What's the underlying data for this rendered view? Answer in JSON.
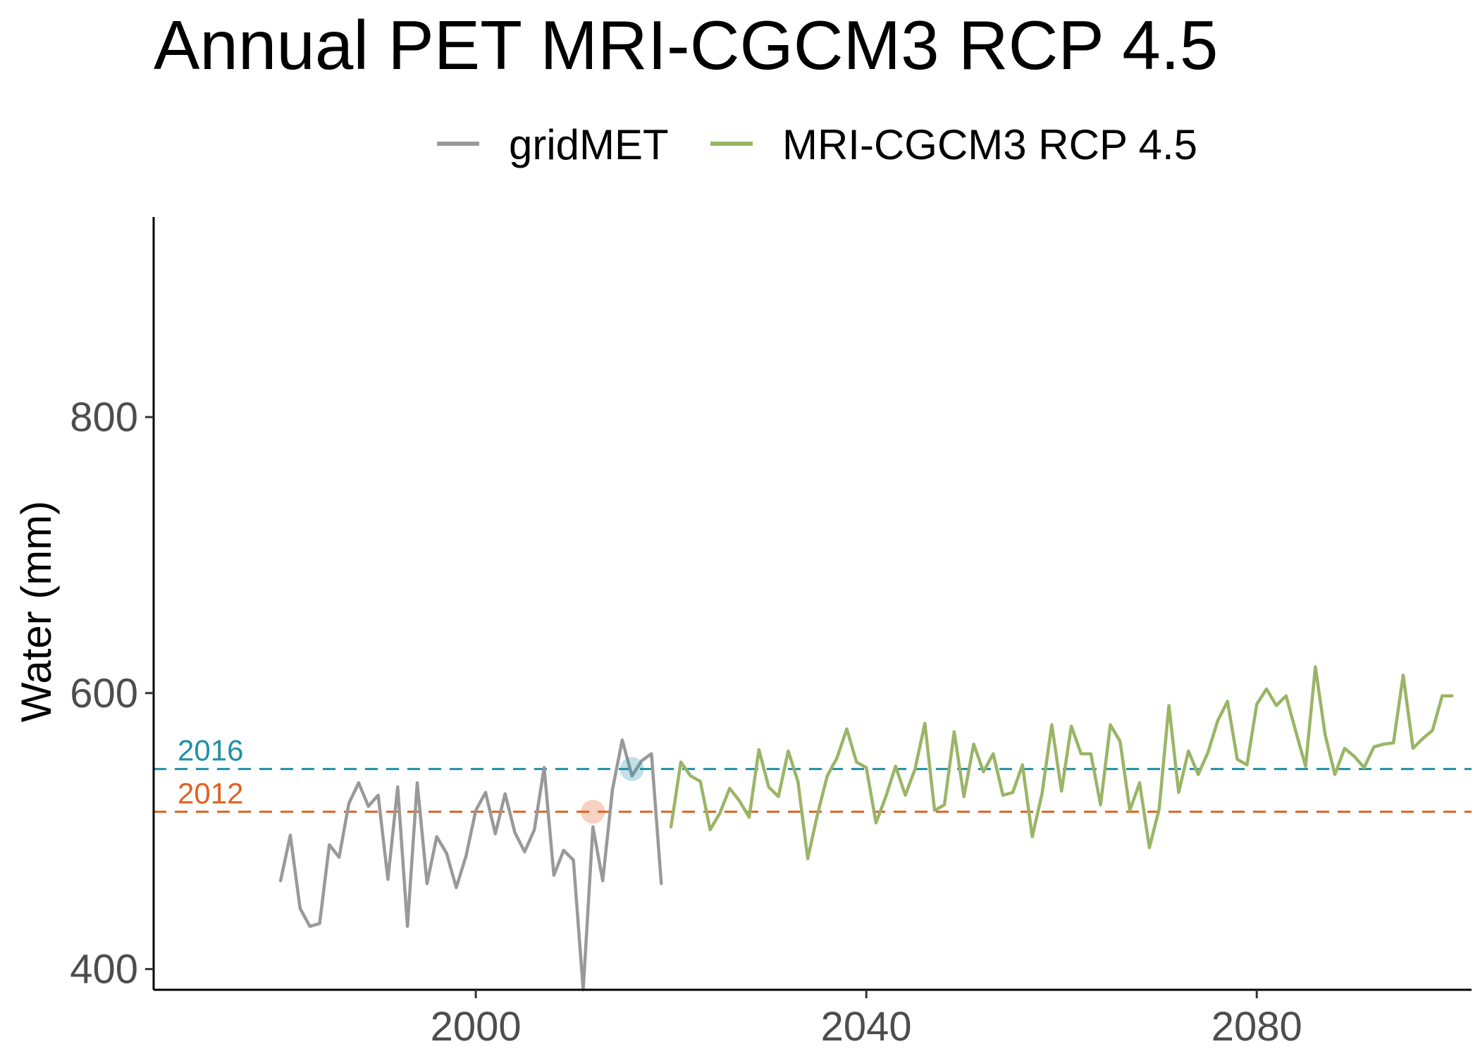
{
  "chart_data": {
    "type": "line",
    "title": "Annual PET MRI-CGCM3 RCP 4.5",
    "xlabel": "",
    "ylabel": "Water (mm)",
    "xlim": [
      1967,
      2102
    ],
    "ylim": [
      385,
      945
    ],
    "x_ticks": [
      2000,
      2040,
      2080
    ],
    "y_ticks": [
      400,
      600,
      800
    ],
    "grid": false,
    "legend": {
      "position": "top"
    },
    "series": [
      {
        "name": "gridMET",
        "color": "#999999",
        "x": [
          1980,
          1981,
          1982,
          1983,
          1984,
          1985,
          1986,
          1987,
          1988,
          1989,
          1990,
          1991,
          1992,
          1993,
          1994,
          1995,
          1996,
          1997,
          1998,
          1999,
          2000,
          2001,
          2002,
          2003,
          2004,
          2005,
          2006,
          2007,
          2008,
          2009,
          2010,
          2011,
          2012,
          2013,
          2014,
          2015,
          2016,
          2017,
          2018,
          2019
        ],
        "values": [
          464,
          497,
          444,
          431,
          433,
          490,
          481,
          520,
          535,
          518,
          526,
          465,
          532,
          431,
          535,
          462,
          496,
          484,
          459,
          482,
          515,
          528,
          498,
          527,
          499,
          485,
          501,
          546,
          468,
          486,
          479,
          385,
          503,
          464,
          530,
          566,
          540,
          551,
          556,
          462
        ]
      },
      {
        "name": "MRI-CGCM3 RCP 4.5",
        "color": "#9ab566",
        "x": [
          2020,
          2021,
          2022,
          2023,
          2024,
          2025,
          2026,
          2027,
          2028,
          2029,
          2030,
          2031,
          2032,
          2033,
          2034,
          2035,
          2036,
          2037,
          2038,
          2039,
          2040,
          2041,
          2042,
          2043,
          2044,
          2045,
          2046,
          2047,
          2048,
          2049,
          2050,
          2051,
          2052,
          2053,
          2054,
          2055,
          2056,
          2057,
          2058,
          2059,
          2060,
          2061,
          2062,
          2063,
          2064,
          2065,
          2066,
          2067,
          2068,
          2069,
          2070,
          2071,
          2072,
          2073,
          2074,
          2075,
          2076,
          2077,
          2078,
          2079,
          2080,
          2081,
          2082,
          2083,
          2084,
          2085,
          2086,
          2087,
          2088,
          2089,
          2090,
          2091,
          2092,
          2093,
          2094,
          2095,
          2096,
          2097,
          2098,
          2099,
          2100
        ],
        "values": [
          503,
          550,
          540,
          536,
          501,
          513,
          531,
          522,
          510,
          559,
          532,
          525,
          558,
          536,
          480,
          512,
          540,
          553,
          574,
          550,
          546,
          506,
          525,
          547,
          526,
          545,
          578,
          515,
          519,
          572,
          525,
          563,
          543,
          556,
          526,
          528,
          548,
          496,
          527,
          577,
          529,
          576,
          556,
          556,
          519,
          577,
          565,
          515,
          535,
          488,
          516,
          591,
          528,
          558,
          541,
          557,
          580,
          594,
          552,
          548,
          592,
          603,
          591,
          598,
          572,
          547,
          619,
          570,
          541,
          560,
          554,
          546,
          561,
          563,
          564,
          613,
          560,
          567,
          573,
          598,
          598
        ]
      }
    ],
    "reference_lines": [
      {
        "label": "2016",
        "value": 545,
        "color": "#1f8fa8",
        "highlight_x": 2016
      },
      {
        "label": "2012",
        "value": 514,
        "color": "#e0611f",
        "highlight_x": 2012
      }
    ]
  }
}
